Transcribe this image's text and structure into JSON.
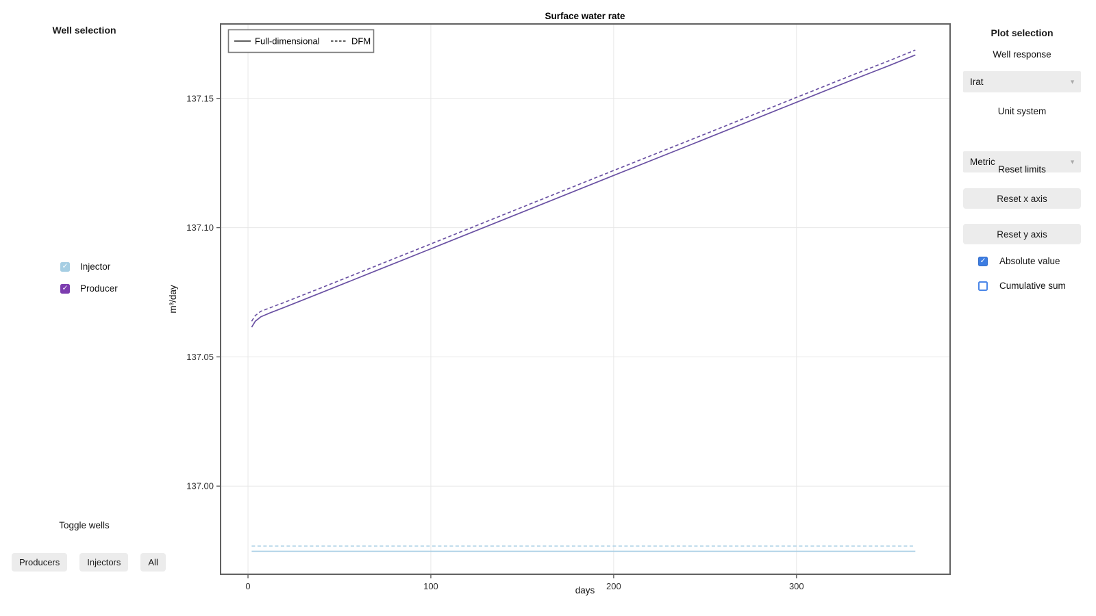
{
  "colors": {
    "producer_line": "#6a51a3",
    "injector_line": "#a9cfe5",
    "producer_checkbox": "#7c3caf",
    "injector_checkbox": "#a6cee3",
    "blue_checkbox": "#3d7de2",
    "blue_checkbox_border": "#4a86e8",
    "button_bg": "#ececec",
    "spine": "#616161",
    "grid": "#e7e7e7"
  },
  "left_sidebar": {
    "title": "Well selection",
    "well_items": [
      {
        "label": "Injector",
        "checked": true,
        "color": "#a6cee3"
      },
      {
        "label": "Producer",
        "checked": true,
        "color": "#7c3caf"
      }
    ],
    "toggle_label": "Toggle wells",
    "buttons": [
      {
        "label": "Producers"
      },
      {
        "label": "Injectors"
      },
      {
        "label": "All"
      }
    ],
    "check_glyph": "✓"
  },
  "right_sidebar": {
    "title": "Plot selection",
    "well_response_label": "Well response",
    "well_response_value": "Irat",
    "unit_system_label": "Unit system",
    "unit_system_value": "Metric",
    "reset_limits_label": "Reset limits",
    "reset_x_label": "Reset x axis",
    "reset_y_label": "Reset y axis",
    "checkboxes": [
      {
        "label": "Absolute value",
        "checked": true
      },
      {
        "label": "Cumulative sum",
        "checked": false
      }
    ],
    "dropdown_arrow_glyph": "▼",
    "check_glyph": "✓"
  },
  "chart_data": {
    "type": "line",
    "title": "Surface water rate",
    "xlabel": "days",
    "ylabel": "m³/day",
    "xlim": [
      -15,
      384
    ],
    "ylim": [
      136.9659,
      137.1788
    ],
    "xticks": [
      0,
      100,
      200,
      300
    ],
    "yticks": [
      137.0,
      137.05,
      137.1,
      137.15
    ],
    "grid": true,
    "legend": {
      "position": "upper left",
      "entries": [
        {
          "label": "Full-dimensional",
          "style": "solid"
        },
        {
          "label": "DFM",
          "style": "dashed"
        }
      ]
    },
    "series": [
      {
        "id": "producer-full-dimensional",
        "name": "Producer Full-dimensional",
        "color": "#6a51a3",
        "style": "solid",
        "width": 1.7,
        "x": [
          2,
          4,
          7,
          12,
          20,
          40,
          70,
          100,
          150,
          200,
          250,
          300,
          330,
          350,
          365
        ],
        "y": [
          137.0615,
          137.0638,
          137.0655,
          137.067,
          137.0692,
          137.0748,
          137.0833,
          137.0918,
          137.106,
          137.1202,
          137.1343,
          137.1485,
          137.157,
          137.1625,
          137.1668
        ]
      },
      {
        "id": "producer-dfm",
        "name": "Producer DFM",
        "color": "#6a51a3",
        "style": "dashed",
        "width": 1.6,
        "x": [
          2,
          4,
          7,
          12,
          20,
          40,
          70,
          100,
          150,
          200,
          250,
          300,
          330,
          350,
          365
        ],
        "y": [
          137.0638,
          137.066,
          137.0676,
          137.069,
          137.0711,
          137.0767,
          137.0852,
          137.0937,
          137.1079,
          137.1221,
          137.1362,
          137.1504,
          137.1589,
          137.1644,
          137.1687
        ]
      },
      {
        "id": "injector-full-dimensional",
        "name": "Injector Full-dimensional",
        "color": "#a9cfe5",
        "style": "solid",
        "width": 1.6,
        "x": [
          2,
          365
        ],
        "y": [
          136.9748,
          136.9748
        ]
      },
      {
        "id": "injector-dfm",
        "name": "Injector DFM",
        "color": "#a9cfe5",
        "style": "dashed",
        "width": 1.6,
        "x": [
          2,
          365
        ],
        "y": [
          136.9768,
          136.9768
        ]
      }
    ]
  }
}
